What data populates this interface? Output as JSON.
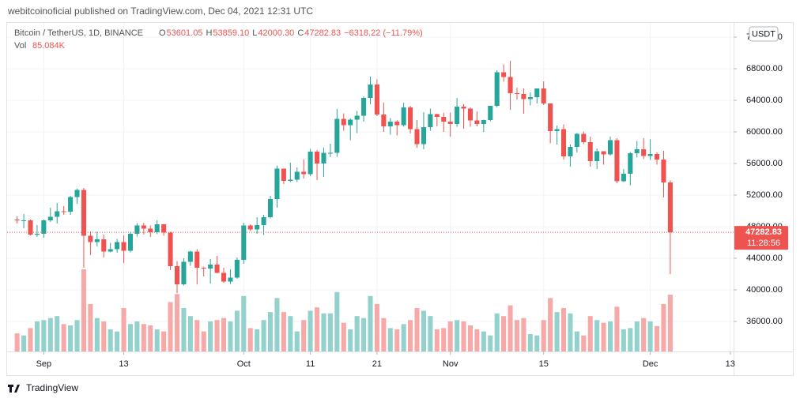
{
  "header": {
    "attribution": "webitcoinoficial published on TradingView.com, Dec 04, 2021 12:31 UTC",
    "footer": "TradingView"
  },
  "chart_data": {
    "type": "candlestick",
    "symbol": "Bitcoin / TetherUS, 1D, BINANCE",
    "legend": [
      {
        "key": "O",
        "value": "53601.05"
      },
      {
        "key": "H",
        "value": "53859.10"
      },
      {
        "key": "L",
        "value": "42000.30"
      },
      {
        "key": "C",
        "value": "47282.83"
      }
    ],
    "change": "−6318.22 (−11.79%)",
    "volume_title": "Vol",
    "volume_value_label": "85.084K",
    "currency": "USDT",
    "countdown": "11:28:56",
    "up_color": "#26a69a",
    "down_color": "#ef5350",
    "volume_up_color": "#93d2cc",
    "volume_down_color": "#f7a9a7",
    "grid": true,
    "x": [
      "2021-08-28",
      "2021-08-29",
      "2021-08-30",
      "2021-08-31",
      "2021-09-01",
      "2021-09-02",
      "2021-09-03",
      "2021-09-04",
      "2021-09-05",
      "2021-09-06",
      "2021-09-07",
      "2021-09-08",
      "2021-09-09",
      "2021-09-10",
      "2021-09-11",
      "2021-09-12",
      "2021-09-13",
      "2021-09-14",
      "2021-09-15",
      "2021-09-16",
      "2021-09-17",
      "2021-09-18",
      "2021-09-19",
      "2021-09-20",
      "2021-09-21",
      "2021-09-22",
      "2021-09-23",
      "2021-09-24",
      "2021-09-25",
      "2021-09-26",
      "2021-09-27",
      "2021-09-28",
      "2021-09-29",
      "2021-09-30",
      "2021-10-01",
      "2021-10-02",
      "2021-10-03",
      "2021-10-04",
      "2021-10-05",
      "2021-10-06",
      "2021-10-07",
      "2021-10-08",
      "2021-10-09",
      "2021-10-10",
      "2021-10-11",
      "2021-10-12",
      "2021-10-13",
      "2021-10-14",
      "2021-10-15",
      "2021-10-16",
      "2021-10-17",
      "2021-10-18",
      "2021-10-19",
      "2021-10-20",
      "2021-10-21",
      "2021-10-22",
      "2021-10-23",
      "2021-10-24",
      "2021-10-25",
      "2021-10-26",
      "2021-10-27",
      "2021-10-28",
      "2021-10-29",
      "2021-10-30",
      "2021-10-31",
      "2021-11-01",
      "2021-11-02",
      "2021-11-03",
      "2021-11-04",
      "2021-11-05",
      "2021-11-06",
      "2021-11-07",
      "2021-11-08",
      "2021-11-09",
      "2021-11-10",
      "2021-11-11",
      "2021-11-12",
      "2021-11-13",
      "2021-11-14",
      "2021-11-15",
      "2021-11-16",
      "2021-11-17",
      "2021-11-18",
      "2021-11-19",
      "2021-11-20",
      "2021-11-21",
      "2021-11-22",
      "2021-11-23",
      "2021-11-24",
      "2021-11-25",
      "2021-11-26",
      "2021-11-27",
      "2021-11-28",
      "2021-11-29",
      "2021-11-30",
      "2021-12-01",
      "2021-12-02",
      "2021-12-03",
      "2021-12-04"
    ],
    "open": [
      48900,
      48800,
      48800,
      46980,
      47100,
      48800,
      49250,
      49950,
      49900,
      51750,
      52650,
      46850,
      46050,
      46400,
      44850,
      45150,
      46050,
      44950,
      47100,
      48150,
      47750,
      47300,
      48300,
      47250,
      43000,
      40700,
      43550,
      44850,
      42800,
      42700,
      43200,
      42150,
      41050,
      41550,
      43800,
      48150,
      47650,
      48200,
      49200,
      51500,
      55350,
      53800,
      53950,
      54950,
      54650,
      57500,
      56000,
      57350,
      57350,
      61650,
      60850,
      61550,
      62050,
      64300,
      66000,
      62200,
      60700,
      61300,
      60850,
      63100,
      60350,
      58450,
      60600,
      62250,
      61900,
      61300,
      61000,
      63200,
      62950,
      61450,
      61000,
      61500,
      63300,
      67550,
      66950,
      64900,
      64800,
      64150,
      64400,
      65500,
      63600,
      60100,
      60350,
      56900,
      58100,
      59750,
      58700,
      56300,
      57550,
      57150,
      58950,
      53750,
      54700,
      57300,
      57800,
      56950,
      57200,
      56500,
      53601.05
    ],
    "high": [
      49300,
      49600,
      48900,
      48200,
      48900,
      50400,
      51000,
      50600,
      51900,
      52800,
      52900,
      47400,
      47350,
      47000,
      45950,
      46450,
      46900,
      47250,
      48450,
      48500,
      48150,
      48800,
      48350,
      47350,
      43650,
      44000,
      44950,
      45150,
      42950,
      43900,
      44300,
      42800,
      42600,
      44100,
      48500,
      48300,
      49200,
      49500,
      51900,
      55750,
      55350,
      56100,
      55500,
      56550,
      57850,
      57700,
      58000,
      58500,
      62900,
      62350,
      61700,
      62650,
      64500,
      67000,
      66650,
      63700,
      61750,
      61500,
      63700,
      63300,
      61500,
      62500,
      62950,
      62300,
      62400,
      62450,
      64300,
      63500,
      63100,
      62600,
      61550,
      63300,
      67800,
      68550,
      69000,
      65600,
      65500,
      65000,
      65500,
      66400,
      63600,
      60800,
      60950,
      58400,
      59850,
      60050,
      59400,
      57900,
      57550,
      59400,
      59200,
      55300,
      57450,
      58850,
      59200,
      59050,
      57400,
      57600,
      53859.1
    ],
    "low": [
      48400,
      47800,
      46900,
      46700,
      46600,
      48600,
      48400,
      49500,
      49500,
      50900,
      42800,
      44400,
      45500,
      44100,
      44750,
      44700,
      43400,
      44750,
      46750,
      47000,
      46700,
      47050,
      46850,
      42500,
      39600,
      40550,
      43050,
      40700,
      41700,
      40800,
      42100,
      40900,
      40750,
      41400,
      43300,
      47450,
      47100,
      46950,
      49050,
      50400,
      53400,
      53650,
      53650,
      54100,
      54400,
      53900,
      54300,
      56800,
      56850,
      60150,
      58950,
      59850,
      61300,
      63500,
      62000,
      60000,
      59650,
      59550,
      60650,
      59800,
      58000,
      57800,
      60150,
      60700,
      60000,
      59400,
      60650,
      60400,
      60650,
      60700,
      60000,
      61350,
      63100,
      66350,
      62800,
      64100,
      62300,
      63350,
      63600,
      63400,
      58550,
      58400,
      56500,
      55600,
      57400,
      58450,
      55600,
      55300,
      55850,
      57000,
      53500,
      53650,
      53250,
      56750,
      56550,
      56450,
      55850,
      51700,
      42000.3
    ],
    "close": [
      48800,
      48800,
      46980,
      47100,
      48800,
      49250,
      49950,
      49900,
      51750,
      52650,
      46850,
      46050,
      46400,
      44850,
      45150,
      46050,
      44950,
      47100,
      48150,
      47750,
      47300,
      48300,
      47250,
      43000,
      40700,
      43550,
      44850,
      42800,
      42700,
      43200,
      42150,
      41050,
      41550,
      43800,
      48150,
      47650,
      48200,
      49200,
      51500,
      55350,
      53800,
      53950,
      54950,
      54650,
      57500,
      56000,
      57350,
      57350,
      61650,
      60850,
      61550,
      62050,
      64300,
      66000,
      62200,
      60700,
      61300,
      60850,
      63100,
      60350,
      58450,
      60600,
      62250,
      61900,
      61300,
      61000,
      63200,
      62950,
      61450,
      61000,
      61500,
      63300,
      67550,
      66950,
      64900,
      64800,
      64150,
      64400,
      65500,
      63600,
      60100,
      60350,
      56900,
      58100,
      59750,
      58700,
      56300,
      57550,
      57150,
      58950,
      53750,
      54700,
      57300,
      57800,
      56950,
      57200,
      56500,
      53600,
      47282.83
    ],
    "volume": [
      27000,
      24000,
      35000,
      45000,
      47000,
      50000,
      53000,
      41000,
      39000,
      47000,
      123000,
      71000,
      50000,
      45000,
      33000,
      30000,
      65000,
      41000,
      45000,
      41000,
      39000,
      33000,
      30000,
      74000,
      86000,
      65000,
      53000,
      47000,
      30000,
      45000,
      47000,
      50000,
      45000,
      61000,
      83000,
      35000,
      33000,
      47000,
      59000,
      80000,
      59000,
      53000,
      30000,
      47000,
      61000,
      66000,
      57000,
      57000,
      89000,
      43000,
      33000,
      53000,
      50000,
      83000,
      71000,
      50000,
      35000,
      33000,
      41000,
      47000,
      65000,
      61000,
      53000,
      33000,
      35000,
      45000,
      47000,
      45000,
      39000,
      33000,
      30000,
      24000,
      57000,
      53000,
      69000,
      47000,
      50000,
      26000,
      24000,
      47000,
      80000,
      59000,
      65000,
      57000,
      30000,
      24000,
      53000,
      47000,
      43000,
      45000,
      67000,
      33000,
      35000,
      45000,
      50000,
      45000,
      38000,
      71000,
      85084
    ],
    "xlim": [
      "2021-08-27",
      "2021-12-14"
    ],
    "xticks": [
      {
        "value": "2021-09-01",
        "label": "Sep"
      },
      {
        "value": "2021-09-13",
        "label": "13"
      },
      {
        "value": "2021-10-01",
        "label": "Oct"
      },
      {
        "value": "2021-10-11",
        "label": "11"
      },
      {
        "value": "2021-10-21",
        "label": "21"
      },
      {
        "value": "2021-11-01",
        "label": "Nov"
      },
      {
        "value": "2021-11-15",
        "label": "15"
      },
      {
        "value": "2021-12-01",
        "label": "Dec"
      },
      {
        "value": "2021-12-13",
        "label": "13"
      }
    ],
    "ylim": [
      32200,
      73800
    ],
    "yticks": [
      {
        "value": 36000,
        "label": "36000.00"
      },
      {
        "value": 40000,
        "label": "40000.00"
      },
      {
        "value": 44000,
        "label": "44000.00"
      },
      {
        "value": 48000,
        "label": "48000.00"
      },
      {
        "value": 52000,
        "label": "52000.00"
      },
      {
        "value": 56000,
        "label": "56000.00"
      },
      {
        "value": 60000,
        "label": "60000.00"
      },
      {
        "value": 64000,
        "label": "64000.00"
      },
      {
        "value": 68000,
        "label": "68000.00"
      },
      {
        "value": 72000,
        "label": "72000.00"
      }
    ]
  }
}
